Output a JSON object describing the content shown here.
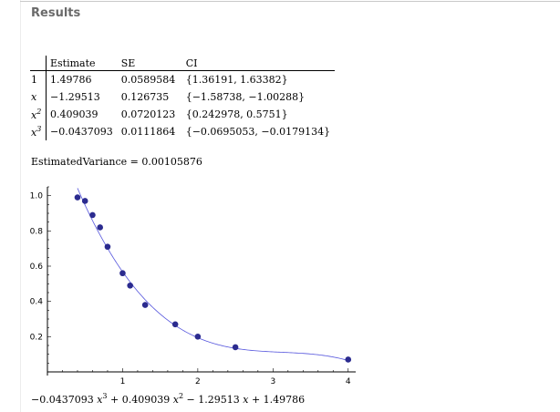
{
  "heading": "Results",
  "parameter_table": {
    "columns": [
      "Estimate",
      "SE",
      "CI"
    ],
    "rows": [
      {
        "name": "1",
        "estimate": "1.49786",
        "se": "0.0589584",
        "ci": "{1.36191, 1.63382}"
      },
      {
        "name": "x",
        "estimate": "−1.29513",
        "se": "0.126735",
        "ci": "{−1.58738, −1.00288}"
      },
      {
        "name": "x",
        "power": "2",
        "estimate": "0.409039",
        "se": "0.0720123",
        "ci": "{0.242978, 0.5751}"
      },
      {
        "name": "x",
        "power": "3",
        "estimate": "−0.0437093",
        "se": "0.0111864",
        "ci": "{−0.0695053, −0.0179134}"
      }
    ]
  },
  "estimated_variance": "EstimatedVariance = 0.00105876",
  "formula": {
    "c3": "−0.0437093",
    "c2": "+ 0.409039",
    "c1": "− 1.29513",
    "c0": "+ 1.49786",
    "var": "x",
    "p3": "3",
    "p2": "2"
  },
  "chart_data": {
    "type": "scatter",
    "title": "",
    "xlabel": "",
    "ylabel": "",
    "xlim": [
      0,
      4.1
    ],
    "ylim": [
      0,
      1.05
    ],
    "xticks": [
      1,
      2,
      3,
      4
    ],
    "yticks": [
      0.2,
      0.4,
      0.6,
      0.8,
      1.0
    ],
    "ytick_labels": [
      "0.2",
      "0.4",
      "0.6",
      "0.8",
      "1.0"
    ],
    "grid": false,
    "point_color": "#2b2b8f",
    "curve_color": "#5555dd",
    "points": [
      {
        "x": 0.4,
        "y": 0.99
      },
      {
        "x": 0.5,
        "y": 0.97
      },
      {
        "x": 0.6,
        "y": 0.89
      },
      {
        "x": 0.7,
        "y": 0.82
      },
      {
        "x": 0.8,
        "y": 0.71
      },
      {
        "x": 1.0,
        "y": 0.56
      },
      {
        "x": 1.1,
        "y": 0.49
      },
      {
        "x": 1.3,
        "y": 0.38
      },
      {
        "x": 1.7,
        "y": 0.27
      },
      {
        "x": 2.0,
        "y": 0.2
      },
      {
        "x": 2.5,
        "y": 0.14
      },
      {
        "x": 4.0,
        "y": 0.07
      }
    ],
    "fit_coefficients": [
      1.49786,
      -1.29513,
      0.409039,
      -0.0437093
    ],
    "fit_x_range": [
      0.4,
      4.0
    ]
  }
}
